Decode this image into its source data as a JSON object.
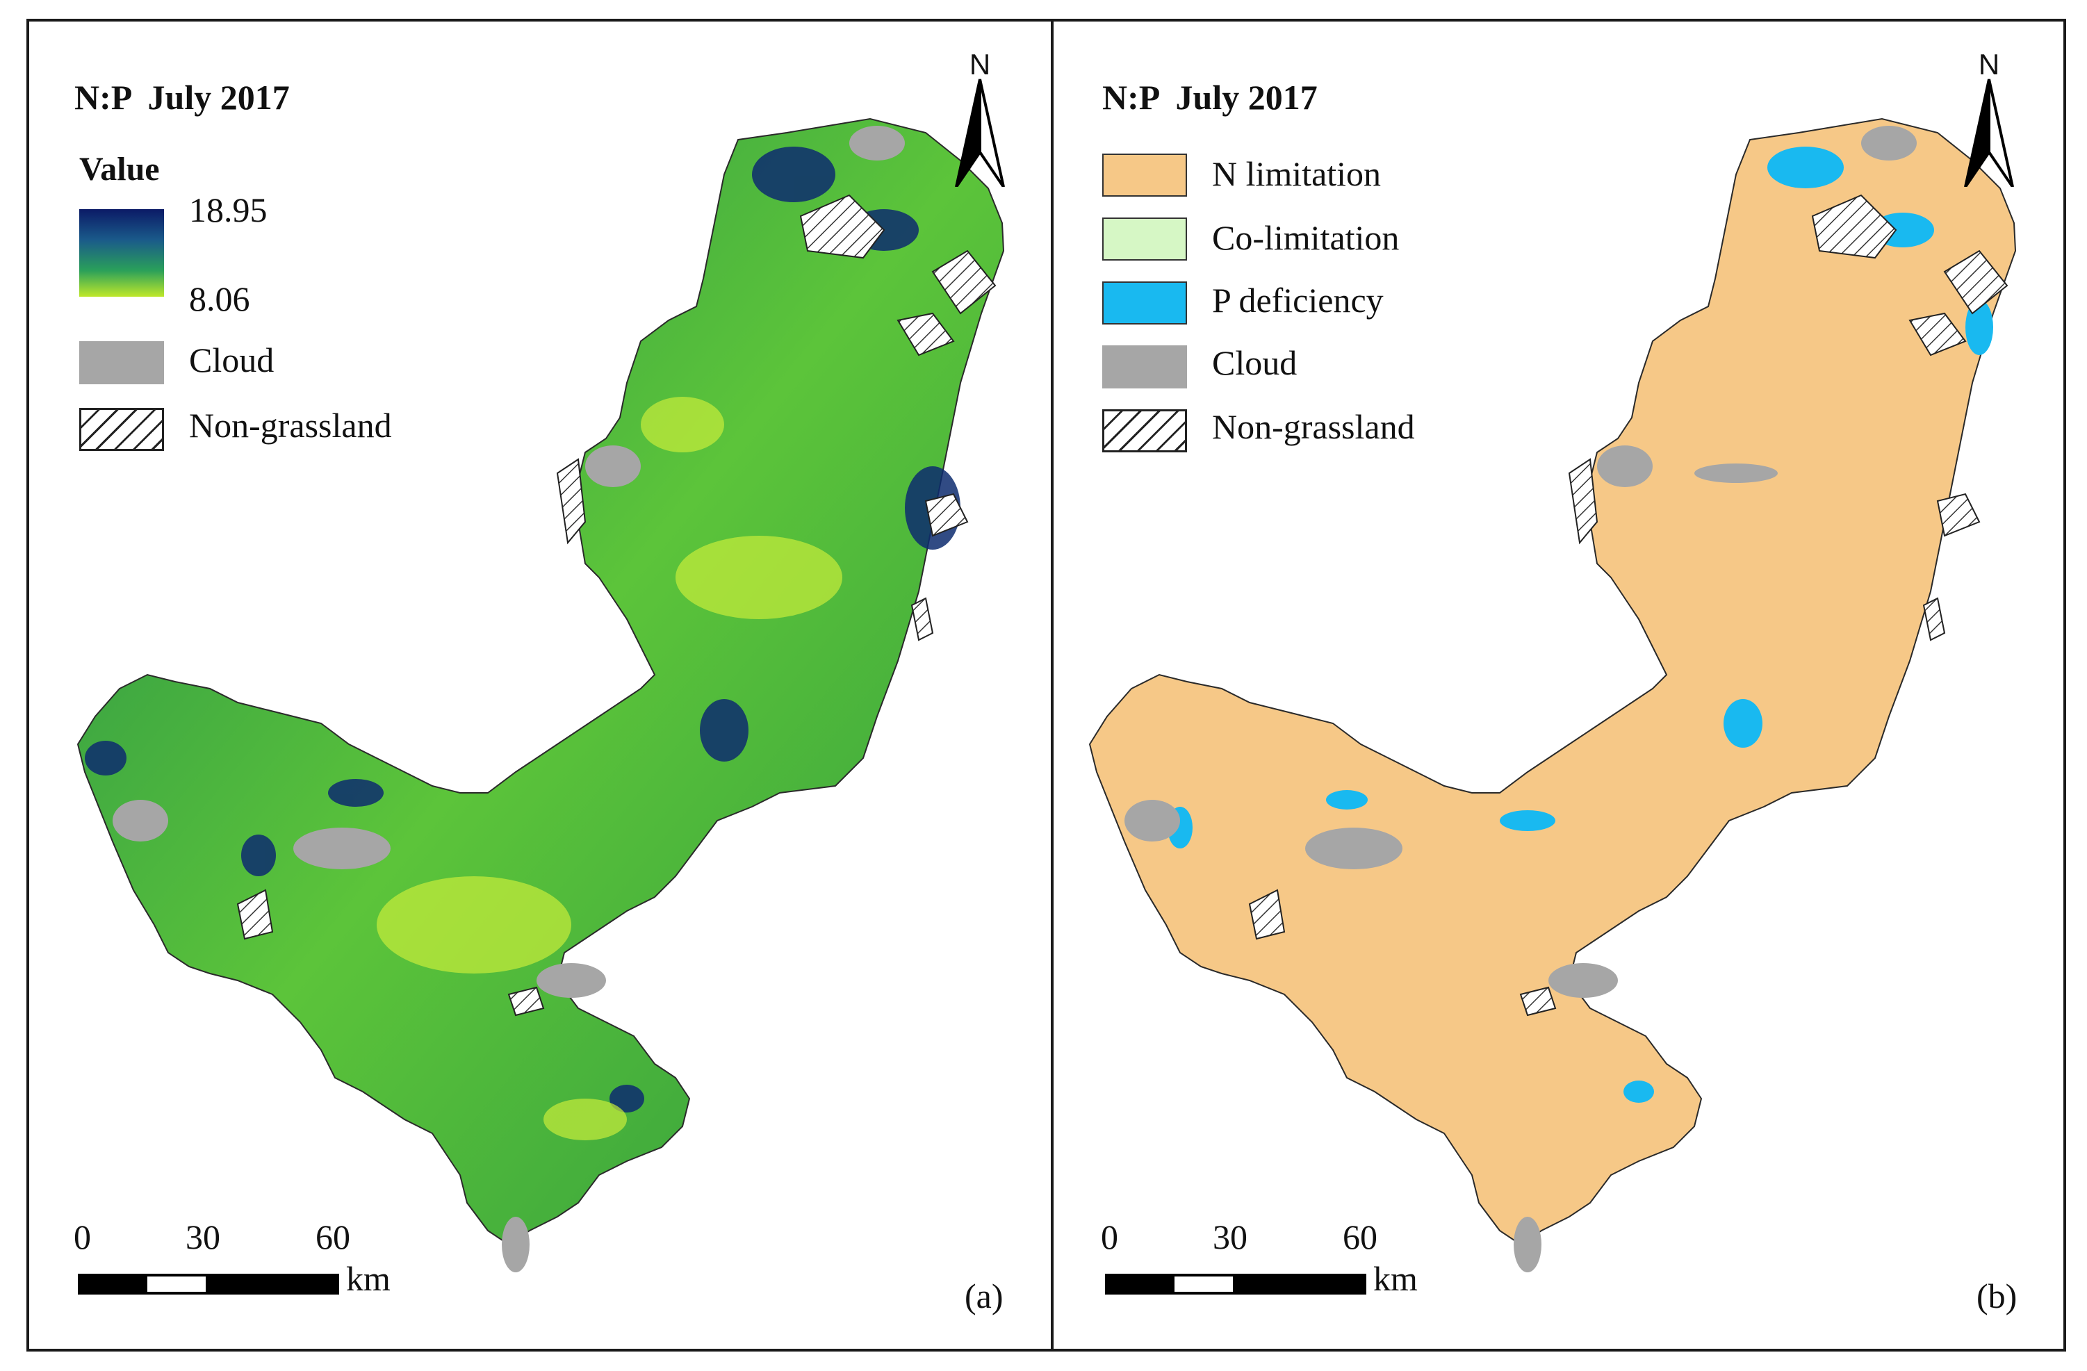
{
  "panel_a": {
    "title": "N:P  July 2017",
    "legend_heading": "Value",
    "gradient_max": "18.95",
    "gradient_min": "8.06",
    "gradient_colors": [
      "#0b1a66",
      "#1a5a8a",
      "#2aa05a",
      "#bfe82a"
    ],
    "legend_items": [
      {
        "label": "Cloud",
        "color": "#a6a6a6"
      },
      {
        "label": "Non-grassland",
        "pattern": "hatch"
      }
    ],
    "north": "N",
    "scale_ticks": [
      "0",
      "30",
      "60"
    ],
    "scale_unit": "km",
    "panel_label": "(a)"
  },
  "panel_b": {
    "title": "N:P  July 2017",
    "legend_items": [
      {
        "label": "N limitation",
        "color": "#f6c887"
      },
      {
        "label": "Co-limitation",
        "color": "#d6f7c5"
      },
      {
        "label": "P deficiency",
        "color": "#19b9f0"
      },
      {
        "label": "Cloud",
        "color": "#a6a6a6"
      },
      {
        "label": "Non-grassland",
        "pattern": "hatch"
      }
    ],
    "north": "N",
    "scale_ticks": [
      "0",
      "30",
      "60"
    ],
    "scale_unit": "km",
    "panel_label": "(b)"
  }
}
